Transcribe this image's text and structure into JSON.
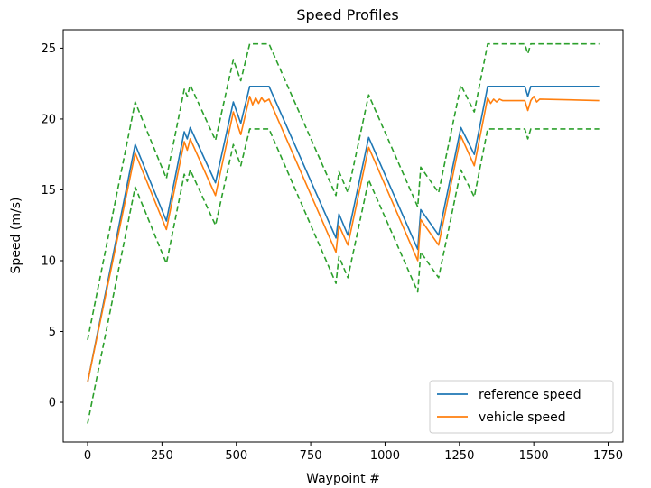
{
  "chart_data": {
    "type": "line",
    "title": "Speed Profiles",
    "xlabel": "Waypoint #",
    "ylabel": "Speed (m/s)",
    "xlim": [
      -82,
      1800
    ],
    "ylim": [
      -2.8,
      26.3
    ],
    "x_ticks": [
      0,
      250,
      500,
      750,
      1000,
      1250,
      1500,
      1750
    ],
    "y_ticks": [
      0,
      5,
      10,
      15,
      20,
      25
    ],
    "x_tick_labels": [
      "0",
      "250",
      "500",
      "750",
      "1000",
      "1250",
      "1500",
      "1750"
    ],
    "y_tick_labels": [
      "0",
      "5",
      "10",
      "15",
      "20",
      "25"
    ],
    "grid": false,
    "legend_position": "lower-right",
    "series": [
      {
        "name": "reference speed",
        "color": "#1f77b4",
        "style": "solid",
        "in_legend": true,
        "x": [
          0,
          160,
          265,
          325,
          335,
          345,
          430,
          490,
          515,
          545,
          610,
          835,
          845,
          875,
          945,
          1110,
          1120,
          1180,
          1255,
          1300,
          1345,
          1470,
          1480,
          1490,
          1720
        ],
        "y": [
          1.4,
          18.2,
          12.8,
          19.1,
          18.6,
          19.4,
          15.5,
          21.2,
          19.7,
          22.3,
          22.3,
          11.6,
          13.3,
          11.8,
          18.7,
          10.8,
          13.6,
          11.8,
          19.4,
          17.5,
          22.3,
          22.3,
          21.6,
          22.3,
          22.3
        ]
      },
      {
        "name": "vehicle speed",
        "color": "#ff7f0e",
        "style": "solid",
        "in_legend": true,
        "x": [
          0,
          160,
          265,
          325,
          335,
          345,
          430,
          490,
          515,
          545,
          555,
          565,
          575,
          585,
          595,
          610,
          835,
          845,
          875,
          945,
          1110,
          1120,
          1180,
          1255,
          1300,
          1345,
          1355,
          1365,
          1375,
          1385,
          1395,
          1470,
          1480,
          1490,
          1500,
          1510,
          1520,
          1720
        ],
        "y": [
          1.4,
          17.6,
          12.2,
          18.4,
          17.8,
          18.6,
          14.6,
          20.5,
          18.9,
          21.6,
          21.0,
          21.5,
          21.1,
          21.5,
          21.2,
          21.4,
          10.6,
          12.5,
          11.1,
          18.0,
          10.0,
          12.9,
          11.1,
          18.8,
          16.7,
          21.5,
          21.1,
          21.4,
          21.2,
          21.4,
          21.3,
          21.3,
          20.6,
          21.3,
          21.6,
          21.2,
          21.4,
          21.3
        ]
      },
      {
        "name": "upper bound",
        "color": "#2ca02c",
        "style": "dashed",
        "in_legend": false,
        "x": [
          0,
          160,
          265,
          325,
          335,
          345,
          430,
          490,
          515,
          545,
          610,
          835,
          845,
          875,
          945,
          1110,
          1120,
          1180,
          1255,
          1300,
          1345,
          1470,
          1480,
          1490,
          1720
        ],
        "y": [
          4.4,
          21.2,
          15.8,
          22.1,
          21.6,
          22.4,
          18.5,
          24.2,
          22.7,
          25.3,
          25.3,
          14.6,
          16.3,
          14.8,
          21.7,
          13.8,
          16.6,
          14.8,
          22.4,
          20.5,
          25.3,
          25.3,
          24.6,
          25.3,
          25.3
        ]
      },
      {
        "name": "lower bound",
        "color": "#2ca02c",
        "style": "dashed",
        "in_legend": false,
        "x": [
          0,
          160,
          265,
          325,
          335,
          345,
          430,
          490,
          515,
          545,
          610,
          835,
          845,
          875,
          945,
          1110,
          1120,
          1180,
          1255,
          1300,
          1345,
          1470,
          1480,
          1490,
          1720
        ],
        "y": [
          -1.5,
          15.2,
          9.8,
          16.1,
          15.6,
          16.4,
          12.5,
          18.2,
          16.7,
          19.3,
          19.3,
          8.4,
          10.3,
          8.8,
          15.7,
          7.8,
          10.6,
          8.8,
          16.4,
          14.5,
          19.3,
          19.3,
          18.6,
          19.3,
          19.3
        ]
      }
    ]
  }
}
